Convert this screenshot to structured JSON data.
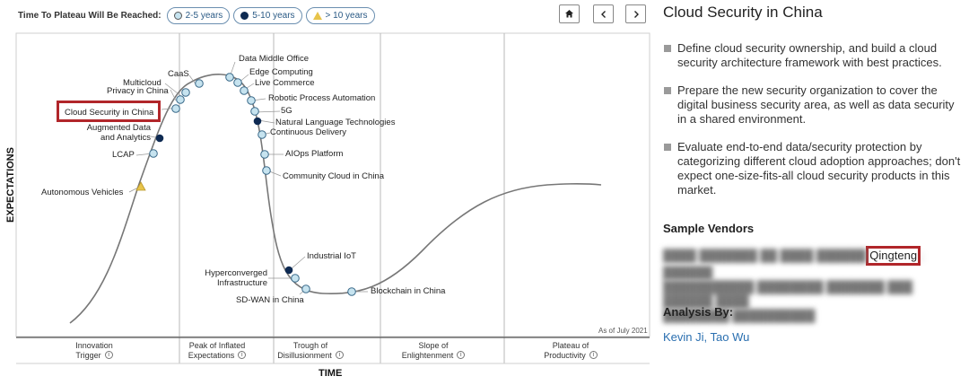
{
  "legend": {
    "title": "Time To Plateau Will Be Reached:",
    "items": [
      {
        "label": "2-5 years",
        "shape": "light-circle"
      },
      {
        "label": "5-10 years",
        "shape": "dark-circle"
      },
      {
        "label": "> 10 years",
        "shape": "triangle"
      }
    ]
  },
  "nav": {
    "home_icon": "home-icon",
    "prev_icon": "chevron-left-icon",
    "next_icon": "chevron-right-icon"
  },
  "chart": {
    "y_axis": "EXPECTATIONS",
    "x_axis": "TIME",
    "as_of": "As of July 2021",
    "phases": [
      {
        "name": "Innovation Trigger"
      },
      {
        "name": "Peak of Inflated Expectations"
      },
      {
        "name": "Trough of Disillusionment"
      },
      {
        "name": "Slope of Enlightenment"
      },
      {
        "name": "Plateau of Productivity"
      }
    ],
    "technologies": [
      {
        "name": "Cloud Security in China",
        "type": "light",
        "highlighted": true
      },
      {
        "name": "Privacy in China",
        "type": "light"
      },
      {
        "name": "Multicloud",
        "type": "light"
      },
      {
        "name": "CaaS",
        "type": "light"
      },
      {
        "name": "Data Middle Office",
        "type": "light"
      },
      {
        "name": "Edge Computing",
        "type": "light"
      },
      {
        "name": "Live Commerce",
        "type": "light"
      },
      {
        "name": "Robotic Process Automation",
        "type": "light"
      },
      {
        "name": "5G",
        "type": "light"
      },
      {
        "name": "Natural Language Technologies",
        "type": "dark"
      },
      {
        "name": "Continuous Delivery",
        "type": "light"
      },
      {
        "name": "AIOps Platform",
        "type": "light"
      },
      {
        "name": "Community Cloud in China",
        "type": "light"
      },
      {
        "name": "Augmented Data and Analytics",
        "type": "dark"
      },
      {
        "name": "LCAP",
        "type": "light"
      },
      {
        "name": "Autonomous Vehicles",
        "type": "triangle"
      },
      {
        "name": "Industrial IoT",
        "type": "dark"
      },
      {
        "name": "Hyperconverged Infrastructure",
        "type": "light"
      },
      {
        "name": "SD-WAN in China",
        "type": "light"
      },
      {
        "name": "Blockchain in China",
        "type": "light"
      }
    ]
  },
  "panel": {
    "title": "Cloud Security in China",
    "bullets": [
      "Define cloud security ownership, and build a cloud security architecture framework with best practices.",
      "Prepare the new security organization to cover the digital business security area, as well as data security in a shared environment.",
      "Evaluate end-to-end data/security protection by categorizing different cloud adoption approaches; don't expect one-size-fits-all cloud security products in this market."
    ],
    "vendors_heading": "Sample Vendors",
    "vendor_highlight": "Qingteng",
    "analysis_heading": "Analysis By:",
    "analysts": "Kevin Ji, Tao Wu"
  },
  "colors": {
    "highlight": "#b1262a",
    "link": "#2a6fb0",
    "light_dot": "#c6e3ef",
    "dark_dot": "#0e2a52",
    "triangle": "#e8c44a"
  }
}
